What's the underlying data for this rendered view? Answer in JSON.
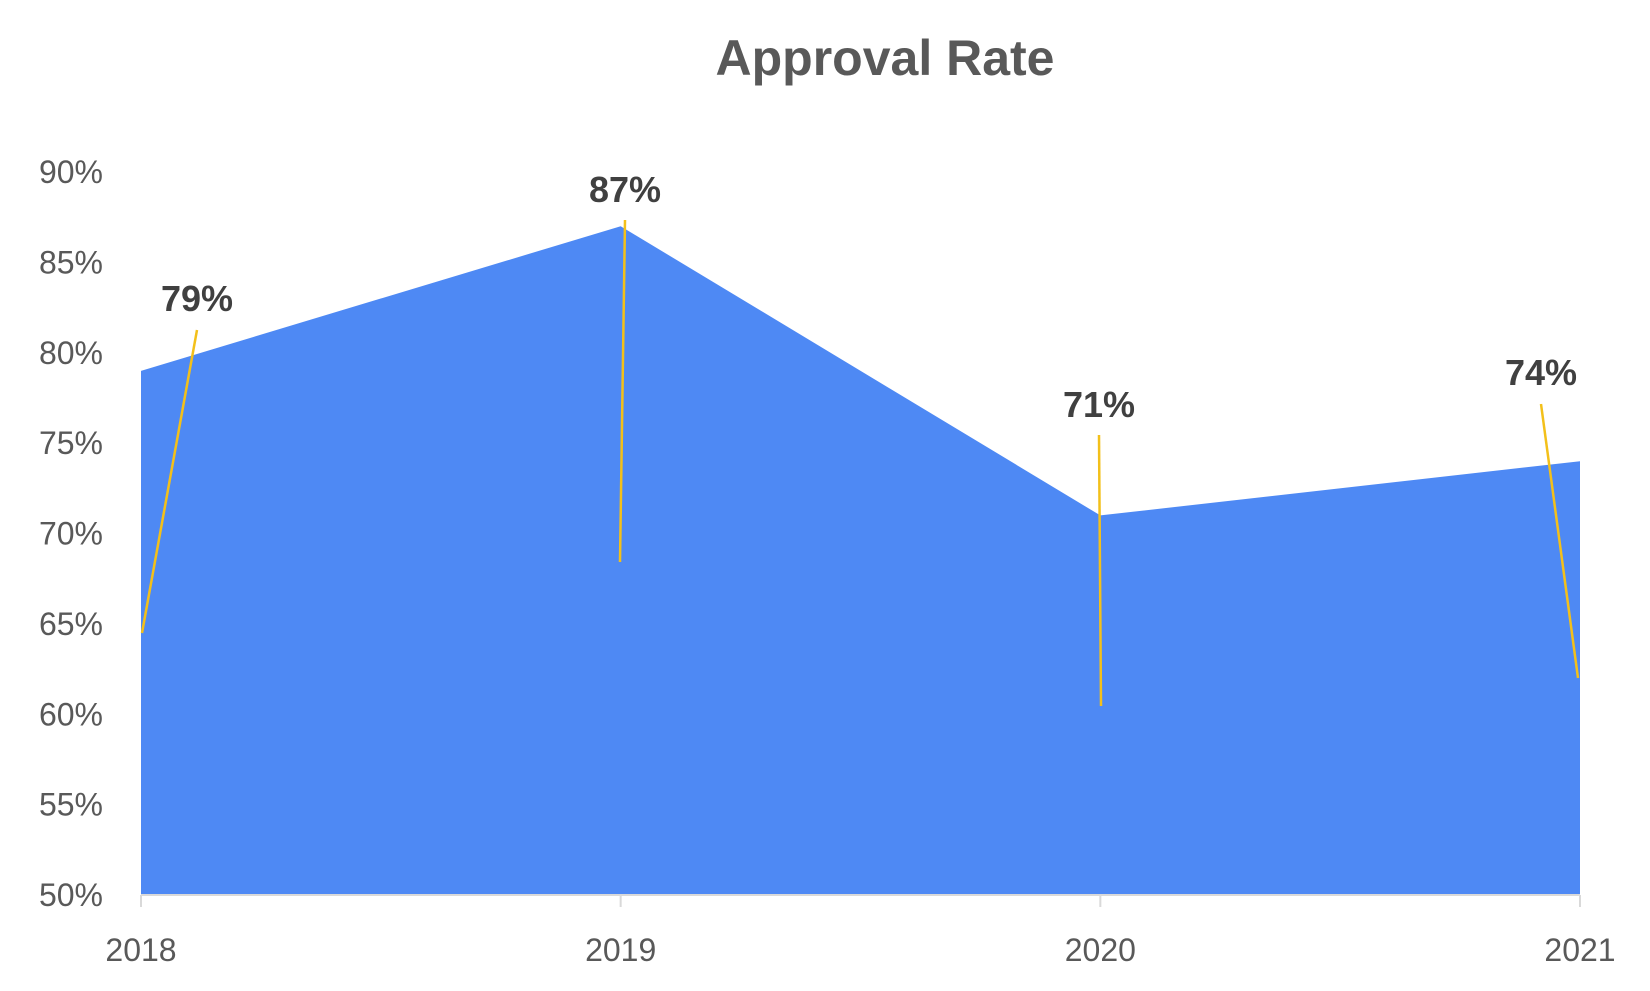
{
  "chart_data": {
    "type": "area",
    "title": "Approval Rate",
    "xlabel": "",
    "ylabel": "",
    "categories": [
      "2018",
      "2019",
      "2020",
      "2021"
    ],
    "values": [
      0.79,
      0.87,
      0.71,
      0.74
    ],
    "data_labels": [
      "79%",
      "87%",
      "71%",
      "74%"
    ],
    "ylim": [
      0.5,
      0.9
    ],
    "y_ticks": [
      0.5,
      0.55,
      0.6,
      0.65,
      0.7,
      0.75,
      0.8,
      0.85,
      0.9
    ],
    "y_tick_labels": [
      "50%",
      "55%",
      "60%",
      "65%",
      "70%",
      "75%",
      "80%",
      "85%",
      "90%"
    ],
    "grid": false,
    "legend": "none",
    "colors": {
      "area": "#4e89f4",
      "leader_line": "#f3c01a",
      "axis": "#d9d9d9",
      "text": "#595959",
      "data_label": "#404040"
    }
  }
}
